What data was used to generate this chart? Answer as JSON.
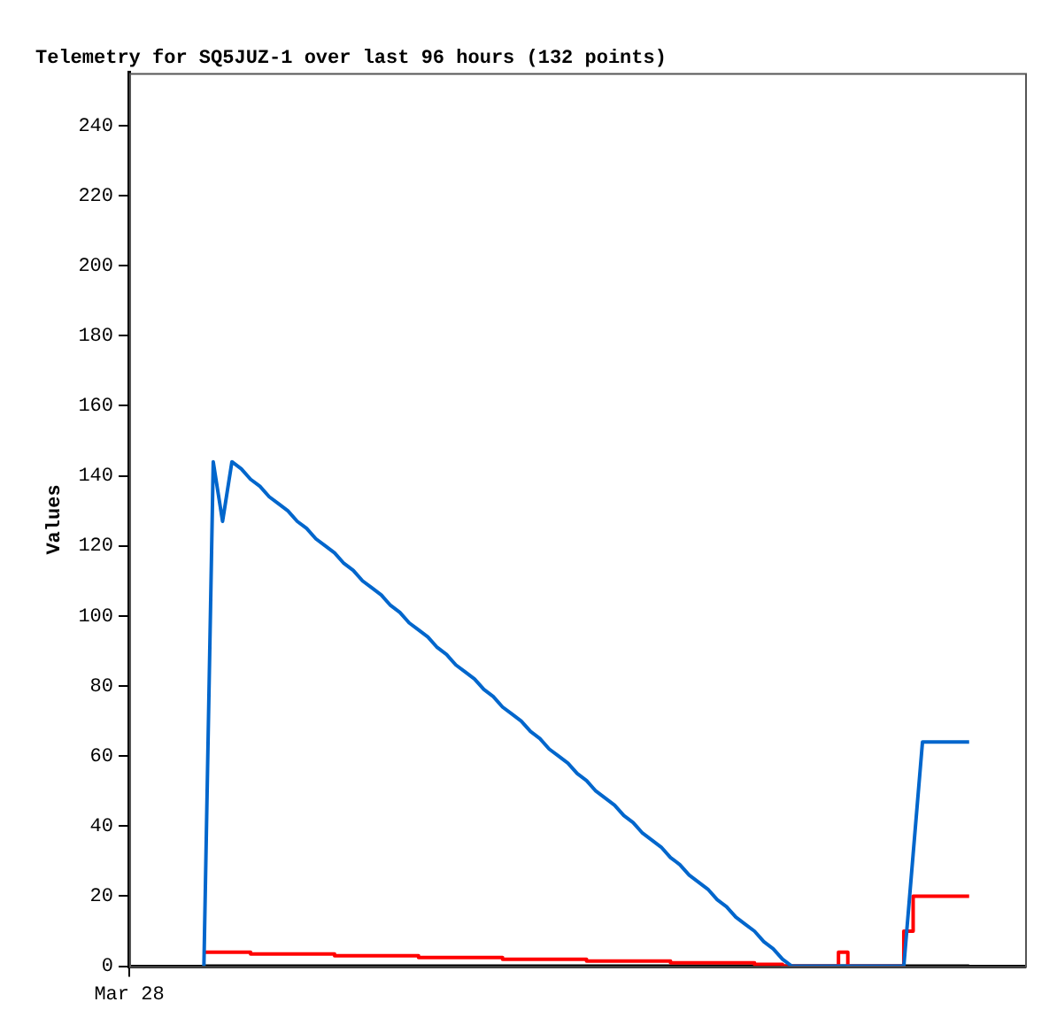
{
  "chart_data": {
    "type": "line",
    "title": "Telemetry for SQ5JUZ-1 over last 96 hours (132 points)",
    "ylabel": "Values",
    "categories": [
      "Mar 28",
      null,
      null,
      null,
      null,
      null,
      null,
      null,
      null,
      null,
      null,
      null,
      null,
      null,
      null,
      null,
      null,
      null,
      null,
      null,
      null,
      null,
      null,
      null,
      null,
      null,
      null,
      null,
      null,
      null,
      null,
      null,
      null,
      null,
      null,
      null,
      null,
      null,
      null,
      null,
      null,
      null,
      null,
      null,
      null,
      null,
      null,
      null,
      null,
      null,
      null,
      null,
      null,
      null,
      null,
      null,
      null,
      null,
      null,
      null,
      null,
      null,
      null,
      null,
      null,
      null,
      null,
      null,
      null,
      null,
      null,
      null,
      null,
      null,
      null,
      null,
      null,
      null,
      null,
      null,
      null,
      null,
      null,
      null,
      null,
      null,
      null,
      null,
      null,
      null,
      null,
      null,
      null,
      null,
      null,
      null,
      null
    ],
    "ylim": [
      0,
      255
    ],
    "yticks": [
      0,
      20,
      40,
      60,
      80,
      100,
      120,
      140,
      160,
      180,
      200,
      220,
      240
    ],
    "series": [
      {
        "color": "#0066cc",
        "values": [
          null,
          null,
          null,
          null,
          null,
          null,
          null,
          null,
          0,
          144,
          127,
          144,
          142,
          139,
          137,
          134,
          132,
          130,
          127,
          125,
          122,
          120,
          118,
          115,
          113,
          110,
          108,
          106,
          103,
          101,
          98,
          96,
          94,
          91,
          89,
          86,
          84,
          82,
          79,
          77,
          74,
          72,
          70,
          67,
          65,
          62,
          60,
          58,
          55,
          53,
          50,
          48,
          46,
          43,
          41,
          38,
          36,
          34,
          31,
          29,
          26,
          24,
          22,
          19,
          17,
          14,
          12,
          10,
          7,
          5,
          2,
          0,
          0,
          0,
          0,
          0,
          0,
          0,
          0,
          0,
          0,
          0,
          0,
          0,
          32,
          64,
          64,
          64,
          64,
          64,
          64,
          null,
          null,
          null,
          null,
          null,
          null
        ]
      },
      {
        "type": "step",
        "color": "#ff0000",
        "values": [
          null,
          null,
          null,
          null,
          null,
          null,
          null,
          null,
          4,
          4,
          4,
          4,
          4,
          4,
          3.5,
          3.5,
          3.5,
          3.5,
          3.5,
          3.5,
          3.5,
          3.5,
          3.5,
          3,
          3,
          3,
          3,
          3,
          3,
          3,
          3,
          3,
          2.5,
          2.5,
          2.5,
          2.5,
          2.5,
          2.5,
          2.5,
          2.5,
          2.5,
          2,
          2,
          2,
          2,
          2,
          2,
          2,
          2,
          2,
          1.5,
          1.5,
          1.5,
          1.5,
          1.5,
          1.5,
          1.5,
          1.5,
          1.5,
          1,
          1,
          1,
          1,
          1,
          1,
          1,
          1,
          1,
          0.5,
          0.5,
          0.5,
          0,
          0,
          0,
          0,
          0,
          0,
          4,
          0,
          0,
          0,
          0,
          0,
          0,
          10,
          20,
          20,
          20,
          20,
          20,
          20,
          null,
          null,
          null,
          null,
          null,
          null
        ]
      },
      {
        "color": "#000000",
        "values": [
          null,
          null,
          null,
          null,
          null,
          null,
          null,
          null,
          0,
          0,
          0,
          0,
          0,
          0,
          0,
          0,
          0,
          0,
          0,
          0,
          0,
          0,
          0,
          0,
          0,
          0,
          0,
          0,
          0,
          0,
          0,
          0,
          0,
          0,
          0,
          0,
          0,
          0,
          0,
          0,
          0,
          0,
          0,
          0,
          0,
          0,
          0,
          0,
          0,
          0,
          0,
          0,
          0,
          0,
          0,
          0,
          0,
          0,
          0,
          0,
          0,
          0,
          0,
          0,
          0,
          0,
          0,
          0,
          0,
          0,
          0,
          0,
          0,
          0,
          0,
          0,
          0,
          0,
          0,
          0,
          0,
          0,
          0,
          0,
          0,
          0,
          0,
          0,
          0,
          0,
          0,
          null,
          null,
          null,
          null,
          null,
          null
        ]
      }
    ]
  }
}
